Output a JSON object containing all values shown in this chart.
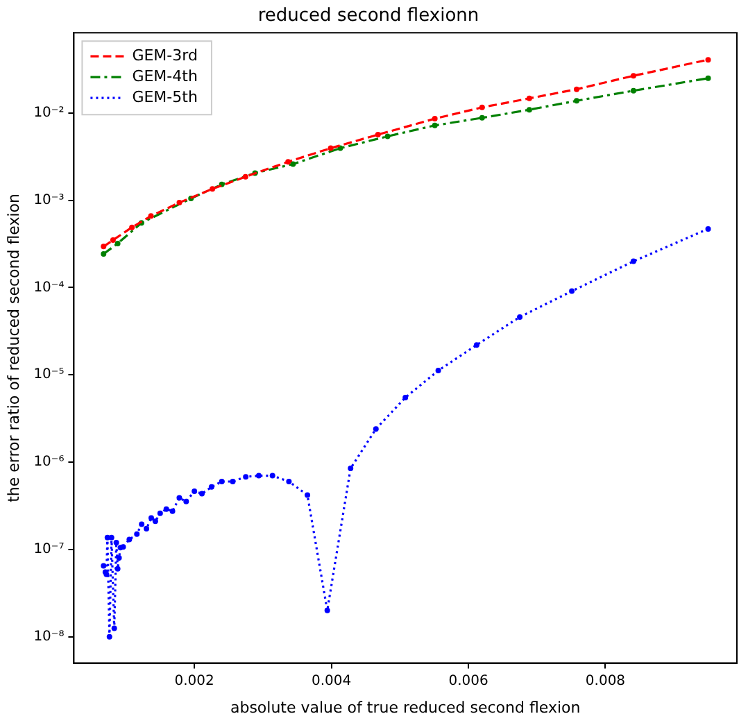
{
  "chart_data": {
    "type": "line",
    "title": "reduced second flexionn",
    "xlabel": "absolute value of true reduced second flexion",
    "ylabel": "the error ratio of reduced second flexion",
    "log": "y",
    "legend": "top left",
    "grid": false,
    "marker": "circle",
    "xlim": [
      0.00024,
      0.00992
    ],
    "xticks": [
      0.002,
      0.004,
      0.006,
      0.008
    ],
    "ylim": [
      5e-09,
      0.083
    ],
    "yticks": [
      {
        "value": 1e-08,
        "label": "10⁻⁸"
      },
      {
        "value": 1e-07,
        "label": "10⁻⁷"
      },
      {
        "value": 1e-06,
        "label": "10⁻⁶"
      },
      {
        "value": 1e-05,
        "label": "10⁻⁵"
      },
      {
        "value": 0.0001,
        "label": "10⁻⁴"
      },
      {
        "value": 0.001,
        "label": "10⁻³"
      },
      {
        "value": 0.01,
        "label": "10⁻²"
      }
    ],
    "series": [
      {
        "name": "GEM-3rd",
        "color": "#ff0000",
        "line_style": "dashed",
        "x": [
          0.000674,
          0.000812,
          0.001088,
          0.001366,
          0.00178,
          0.002263,
          0.002746,
          0.003368,
          0.00399,
          0.00468,
          0.00551,
          0.0062,
          0.00689,
          0.00758,
          0.00841,
          0.0095
        ],
        "values": [
          0.000295,
          0.00035,
          0.00049,
          0.00066,
          0.00094,
          0.00135,
          0.00186,
          0.00276,
          0.00395,
          0.00565,
          0.0086,
          0.0116,
          0.0147,
          0.0187,
          0.0267,
          0.0407
        ]
      },
      {
        "name": "GEM-4th",
        "color": "#008000",
        "line_style": "dashdot",
        "x": [
          0.000674,
          0.00088,
          0.001227,
          0.00195,
          0.0024,
          0.002885,
          0.00344,
          0.00413,
          0.00482,
          0.00551,
          0.0062,
          0.00689,
          0.00758,
          0.00841,
          0.0095
        ],
        "values": [
          0.000243,
          0.00032,
          0.00055,
          0.00105,
          0.00152,
          0.00205,
          0.0026,
          0.00395,
          0.0054,
          0.0072,
          0.0088,
          0.0109,
          0.0138,
          0.018,
          0.025
        ]
      },
      {
        "name": "GEM-5th",
        "color": "#0000ff",
        "line_style": "dotted",
        "x": [
          0.000674,
          0.0007,
          0.000716,
          0.00073,
          0.00076,
          0.00079,
          0.00083,
          0.00086,
          0.00088,
          0.0009,
          0.00092,
          0.00096,
          0.00105,
          0.00116,
          0.00123,
          0.0013,
          0.00137,
          0.00143,
          0.0015,
          0.00159,
          0.00168,
          0.00178,
          0.00188,
          0.002,
          0.00211,
          0.00225,
          0.0024,
          0.00256,
          0.00275,
          0.00294,
          0.00314,
          0.00338,
          0.00365,
          0.00394,
          0.00428,
          0.00465,
          0.00508,
          0.00556,
          0.00612,
          0.00675,
          0.00751,
          0.00841,
          0.0095
        ],
        "values": [
          6.5e-08,
          5.5e-08,
          5.2e-08,
          1.37e-07,
          1e-08,
          1.37e-07,
          1.25e-08,
          1.2e-07,
          6e-08,
          8e-08,
          1.05e-07,
          1.07e-07,
          1.3e-07,
          1.5e-07,
          1.95e-07,
          1.73e-07,
          2.3e-07,
          2.1e-07,
          2.6e-07,
          2.9e-07,
          2.75e-07,
          3.9e-07,
          3.55e-07,
          4.65e-07,
          4.35e-07,
          5.2e-07,
          6e-07,
          6e-07,
          6.8e-07,
          7e-07,
          7e-07,
          6e-07,
          4.2e-07,
          2e-08,
          8.5e-07,
          2.4e-06,
          5.5e-06,
          1.12e-05,
          2.2e-05,
          4.6e-05,
          9.1e-05,
          0.0002,
          0.00047
        ]
      }
    ]
  }
}
